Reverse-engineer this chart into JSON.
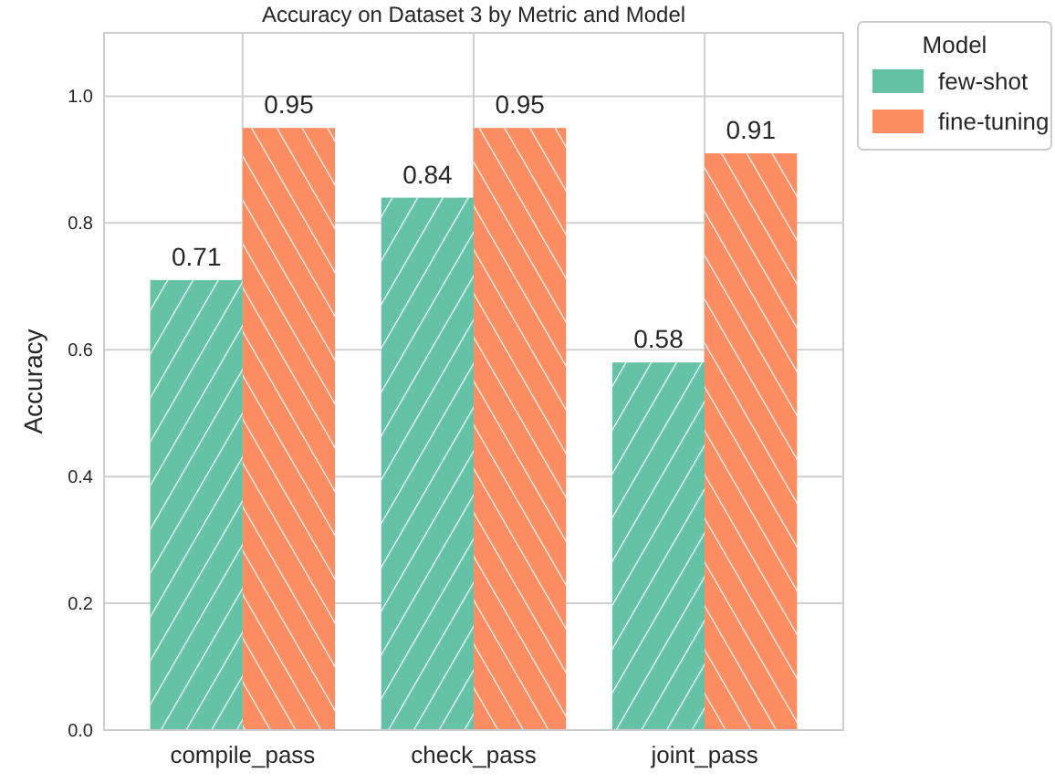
{
  "chart_data": {
    "type": "bar",
    "title": "Accuracy on Dataset 3 by Metric and Model",
    "ylabel": "Accuracy",
    "legend_title": "Model",
    "categories": [
      "compile_pass",
      "check_pass",
      "joint_pass"
    ],
    "series": [
      {
        "name": "few-shot",
        "color": "#66c2a5",
        "values": [
          0.71,
          0.84,
          0.58
        ]
      },
      {
        "name": "fine-tuning",
        "color": "#fc8d62",
        "values": [
          0.95,
          0.95,
          0.91
        ]
      }
    ],
    "ylim": [
      0,
      1.1
    ],
    "yticks": [
      {
        "value": 0,
        "label": "0.0"
      },
      {
        "value": 0.2,
        "label": "0.2"
      },
      {
        "value": 0.4,
        "label": "0.4"
      },
      {
        "value": 0.6,
        "label": "0.6"
      },
      {
        "value": 0.8,
        "label": "0.8"
      },
      {
        "value": 1.0,
        "label": "1.0"
      }
    ],
    "grid": true,
    "legend": "top right",
    "data_labels": true
  }
}
